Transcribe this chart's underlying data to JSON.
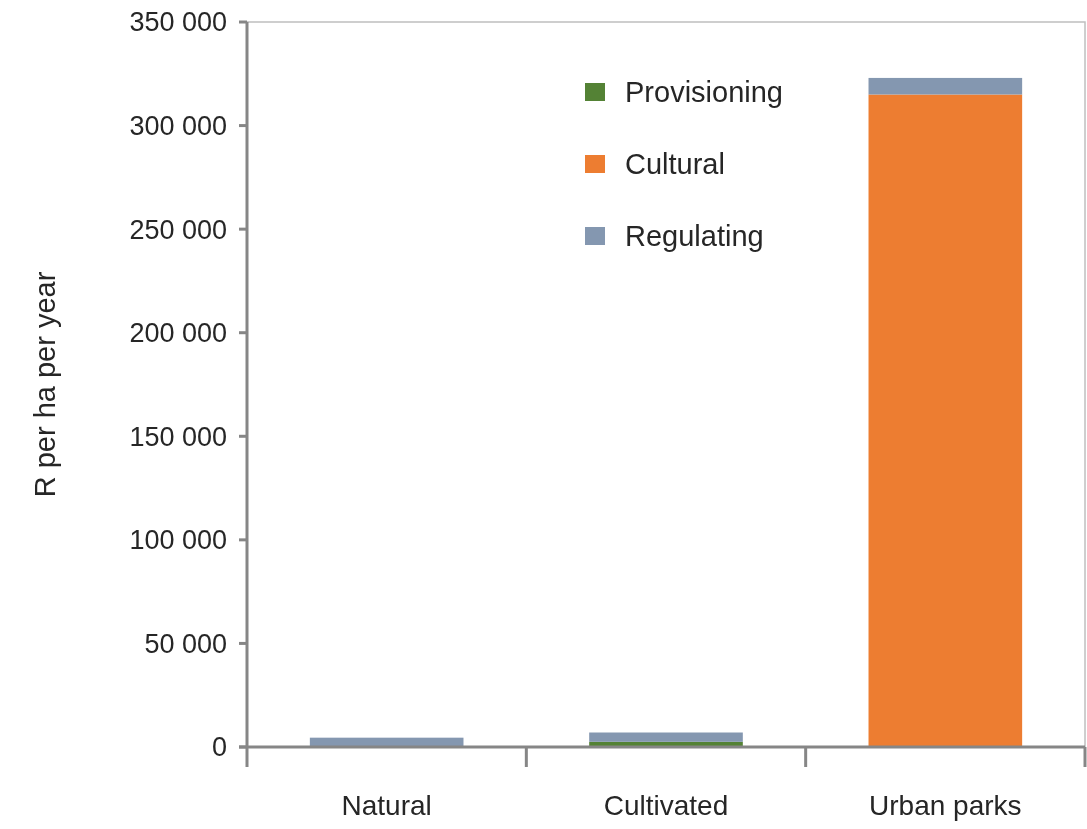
{
  "chart_data": {
    "type": "bar",
    "stacked": true,
    "ylabel": "R per ha per year",
    "categories": [
      "Natural",
      "Cultivated",
      "Urban parks"
    ],
    "series": [
      {
        "name": "Provisioning",
        "color": "#548235",
        "values": [
          0,
          2500,
          0
        ]
      },
      {
        "name": "Cultural",
        "color": "#ed7d31",
        "values": [
          0,
          0,
          315000
        ]
      },
      {
        "name": "Regulating",
        "color": "#8497b0",
        "values": [
          4500,
          4500,
          8000
        ]
      }
    ],
    "ylim": [
      0,
      350000
    ],
    "yticks": [
      {
        "value": 0,
        "label": "0"
      },
      {
        "value": 50000,
        "label": "50 000"
      },
      {
        "value": 100000,
        "label": "100 000"
      },
      {
        "value": 150000,
        "label": "150 000"
      },
      {
        "value": 200000,
        "label": "200 000"
      },
      {
        "value": 250000,
        "label": "250 000"
      },
      {
        "value": 300000,
        "label": "300 000"
      },
      {
        "value": 350000,
        "label": "350 000"
      }
    ],
    "grid": false,
    "legend": "top right"
  }
}
